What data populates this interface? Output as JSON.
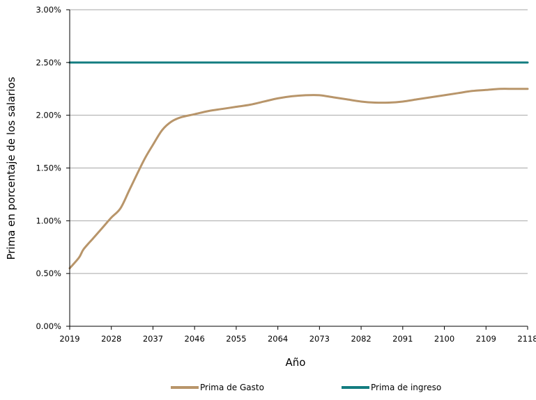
{
  "chart_data": {
    "type": "line",
    "xlabel": "Año",
    "ylabel": "Prima en porcentaje de los salarios",
    "xlim": [
      2019,
      2118
    ],
    "ylim": [
      0,
      3
    ],
    "x_ticks": [
      2019,
      2028,
      2037,
      2046,
      2055,
      2064,
      2073,
      2082,
      2091,
      2100,
      2109,
      2118
    ],
    "x_tick_labels": [
      "2019",
      "2028",
      "2037",
      "2046",
      "2055",
      "2064",
      "2073",
      "2082",
      "2091",
      "2100",
      "2109",
      "2118"
    ],
    "y_ticks": [
      0,
      0.5,
      1,
      1.5,
      2,
      2.5,
      3
    ],
    "y_tick_labels": [
      "0.00%",
      "0.50%",
      "1.00%",
      "1.50%",
      "2.00%",
      "2.50%",
      "3.00%"
    ],
    "grid": "horizontal",
    "legend_position": "bottom",
    "series": [
      {
        "name": "Prima de Gasto",
        "color": "#B8956A",
        "x": [
          2019,
          2021,
          2022,
          2024,
          2026,
          2028,
          2030,
          2032,
          2035,
          2037,
          2039,
          2041,
          2043,
          2046,
          2049,
          2052,
          2055,
          2058,
          2061,
          2064,
          2067,
          2070,
          2073,
          2076,
          2079,
          2082,
          2085,
          2088,
          2091,
          2094,
          2097,
          2100,
          2103,
          2106,
          2109,
          2112,
          2115,
          2118
        ],
        "y": [
          0.55,
          0.65,
          0.73,
          0.83,
          0.93,
          1.03,
          1.12,
          1.3,
          1.57,
          1.72,
          1.86,
          1.94,
          1.98,
          2.01,
          2.04,
          2.06,
          2.08,
          2.1,
          2.13,
          2.16,
          2.18,
          2.19,
          2.19,
          2.17,
          2.15,
          2.13,
          2.12,
          2.12,
          2.13,
          2.15,
          2.17,
          2.19,
          2.21,
          2.23,
          2.24,
          2.25,
          2.25,
          2.25
        ]
      },
      {
        "name": "Prima de ingreso",
        "color": "#137D80",
        "x": [
          2019,
          2118
        ],
        "y": [
          2.5,
          2.5
        ]
      }
    ]
  }
}
